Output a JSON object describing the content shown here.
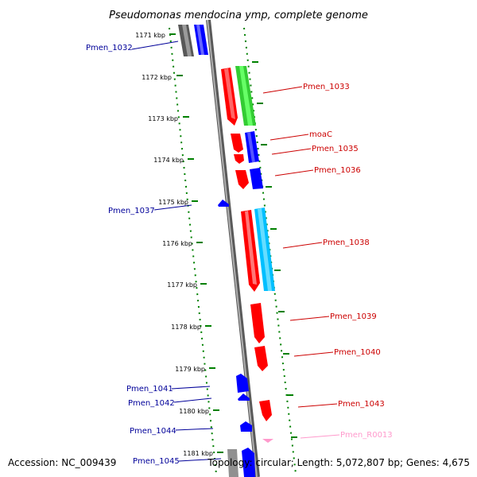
{
  "title": "Pseudomonas mendocina ymp, complete genome",
  "footer": {
    "accession": "Accession: NC_009439",
    "summary": "Topology: circular; Length: 5,072,807 bp; Genes: 4,675"
  },
  "kbp_ticks": [
    "1171 kbp",
    "1172 kbp",
    "1173 kbp",
    "1174 kbp",
    "1175 kbp",
    "1176 kbp",
    "1177 kbp",
    "1178 kbp",
    "1179 kbp",
    "1180 kbp",
    "1181 kbp"
  ],
  "genes_left": [
    "Pmen_1032",
    "Pmen_1037",
    "Pmen_1041",
    "Pmen_1042",
    "Pmen_1044",
    "Pmen_1045"
  ],
  "genes_right": [
    "Pmen_1033",
    "moaC",
    "Pmen_1035",
    "Pmen_1036",
    "Pmen_1038",
    "Pmen_1039",
    "Pmen_1040",
    "Pmen_1043",
    "Pmen_R0013"
  ],
  "colors": {
    "forward_gene": "#ff0000",
    "reverse_gene": "#0000ff",
    "rna_gene": "#ff99cc",
    "backbone": "#808080",
    "tick_dots": "#008000",
    "forward_label": "#cc0000",
    "reverse_label": "#000099"
  }
}
